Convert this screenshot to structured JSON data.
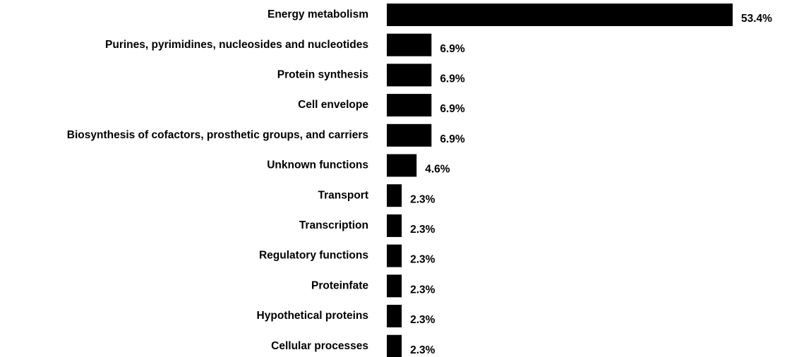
{
  "chart_data": {
    "type": "hbar",
    "categories": [
      "Energy metabolism",
      "Purines, pyrimidines, nucleosides and nucleotides",
      "Protein synthesis",
      "Cell envelope",
      "Biosynthesis of cofactors, prosthetic groups, and carriers",
      "Unknown functions",
      "Transport",
      "Transcription",
      "Regulatory functions",
      "Proteinfate",
      "Hypothetical proteins",
      "Cellular processes"
    ],
    "values": [
      53.4,
      6.9,
      6.9,
      6.9,
      6.9,
      4.6,
      2.3,
      2.3,
      2.3,
      2.3,
      2.3,
      2.3
    ],
    "value_labels": [
      "53.4%",
      "6.9%",
      "6.9%",
      "6.9%",
      "6.9%",
      "4.6%",
      "2.3%",
      "2.3%",
      "2.3%",
      "2.3%",
      "2.3%",
      "2.3%"
    ],
    "color": "#000000"
  }
}
